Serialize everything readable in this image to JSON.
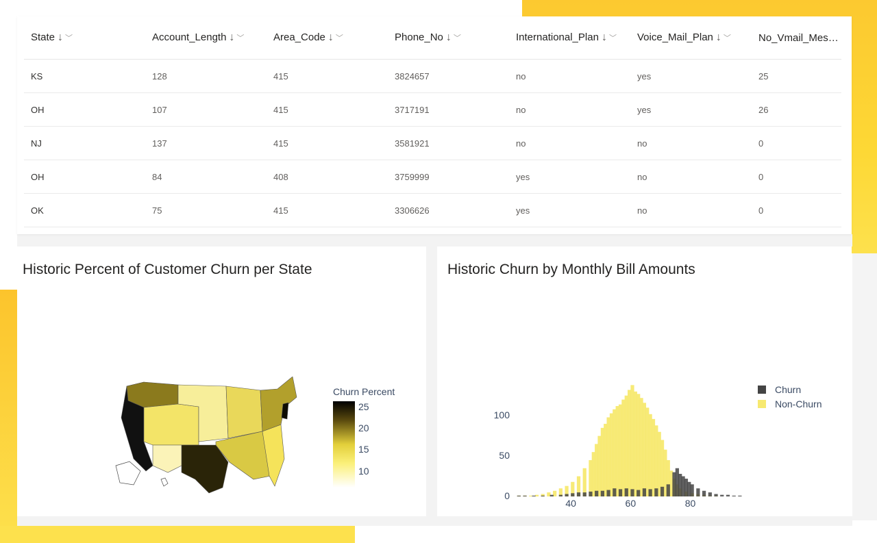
{
  "table": {
    "columns": [
      {
        "label": "State"
      },
      {
        "label": "Account_Length"
      },
      {
        "label": "Area_Code"
      },
      {
        "label": "Phone_No"
      },
      {
        "label": "International_Plan"
      },
      {
        "label": "Voice_Mail_Plan"
      },
      {
        "label": "No_Vmail_Mess..."
      }
    ],
    "sort_icon": "↓",
    "chevron_icon": "﹀",
    "rows": [
      [
        "KS",
        "128",
        "415",
        "3824657",
        "no",
        "yes",
        "25"
      ],
      [
        "OH",
        "107",
        "415",
        "3717191",
        "no",
        "yes",
        "26"
      ],
      [
        "NJ",
        "137",
        "415",
        "3581921",
        "no",
        "no",
        "0"
      ],
      [
        "OH",
        "84",
        "408",
        "3759999",
        "yes",
        "no",
        "0"
      ],
      [
        "OK",
        "75",
        "415",
        "3306626",
        "yes",
        "no",
        "0"
      ]
    ]
  },
  "map_chart": {
    "title": "Historic Percent of Customer Churn per State",
    "colorbar_title": "Churn Percent",
    "colorbar_ticks": [
      "25",
      "20",
      "15",
      "10"
    ],
    "colors": {
      "low": "#ffffff",
      "mid": "#f2e35c",
      "high": "#000000"
    }
  },
  "chart_data": {
    "type": "bar",
    "title": "Historic Churn by Monthly Bill Amounts",
    "x_ticks": [
      "40",
      "60",
      "80"
    ],
    "y_ticks": [
      "0",
      "50",
      "100"
    ],
    "xlim": [
      20,
      98
    ],
    "ylim": [
      0,
      140
    ],
    "bin_width": 1.2,
    "series": [
      {
        "name": "Churn",
        "color": "#444444",
        "bins": [
          [
            22,
            1
          ],
          [
            24,
            1
          ],
          [
            27,
            1
          ],
          [
            30,
            1
          ],
          [
            33,
            2
          ],
          [
            36,
            2
          ],
          [
            38,
            3
          ],
          [
            40,
            4
          ],
          [
            42,
            5
          ],
          [
            44,
            5
          ],
          [
            46,
            6
          ],
          [
            48,
            7
          ],
          [
            50,
            7
          ],
          [
            52,
            8
          ],
          [
            54,
            10
          ],
          [
            56,
            9
          ],
          [
            58,
            10
          ],
          [
            60,
            9
          ],
          [
            62,
            8
          ],
          [
            64,
            10
          ],
          [
            66,
            9
          ],
          [
            68,
            10
          ],
          [
            70,
            12
          ],
          [
            72,
            15
          ],
          [
            74,
            30
          ],
          [
            75,
            35
          ],
          [
            76,
            28
          ],
          [
            77,
            25
          ],
          [
            78,
            22
          ],
          [
            79,
            18
          ],
          [
            80,
            15
          ],
          [
            82,
            10
          ],
          [
            84,
            7
          ],
          [
            86,
            5
          ],
          [
            88,
            3
          ],
          [
            90,
            2
          ],
          [
            92,
            2
          ],
          [
            94,
            1
          ],
          [
            96,
            1
          ]
        ]
      },
      {
        "name": "Non-Churn",
        "color": "#f7e970",
        "bins": [
          [
            22,
            1
          ],
          [
            24,
            1
          ],
          [
            26,
            1
          ],
          [
            28,
            2
          ],
          [
            30,
            3
          ],
          [
            32,
            5
          ],
          [
            34,
            7
          ],
          [
            36,
            10
          ],
          [
            38,
            13
          ],
          [
            40,
            18
          ],
          [
            42,
            25
          ],
          [
            44,
            35
          ],
          [
            46,
            45
          ],
          [
            47,
            55
          ],
          [
            48,
            65
          ],
          [
            49,
            75
          ],
          [
            50,
            85
          ],
          [
            51,
            90
          ],
          [
            52,
            98
          ],
          [
            53,
            103
          ],
          [
            54,
            108
          ],
          [
            55,
            112
          ],
          [
            56,
            114
          ],
          [
            57,
            120
          ],
          [
            58,
            125
          ],
          [
            59,
            132
          ],
          [
            60,
            138
          ],
          [
            61,
            130
          ],
          [
            62,
            127
          ],
          [
            63,
            122
          ],
          [
            64,
            116
          ],
          [
            65,
            110
          ],
          [
            66,
            102
          ],
          [
            67,
            96
          ],
          [
            68,
            88
          ],
          [
            69,
            80
          ],
          [
            70,
            70
          ],
          [
            71,
            58
          ],
          [
            72,
            45
          ],
          [
            73,
            32
          ],
          [
            74,
            22
          ],
          [
            75,
            15
          ],
          [
            76,
            10
          ],
          [
            78,
            6
          ],
          [
            80,
            4
          ],
          [
            82,
            3
          ],
          [
            84,
            2
          ],
          [
            86,
            1
          ],
          [
            88,
            1
          ]
        ]
      }
    ]
  }
}
